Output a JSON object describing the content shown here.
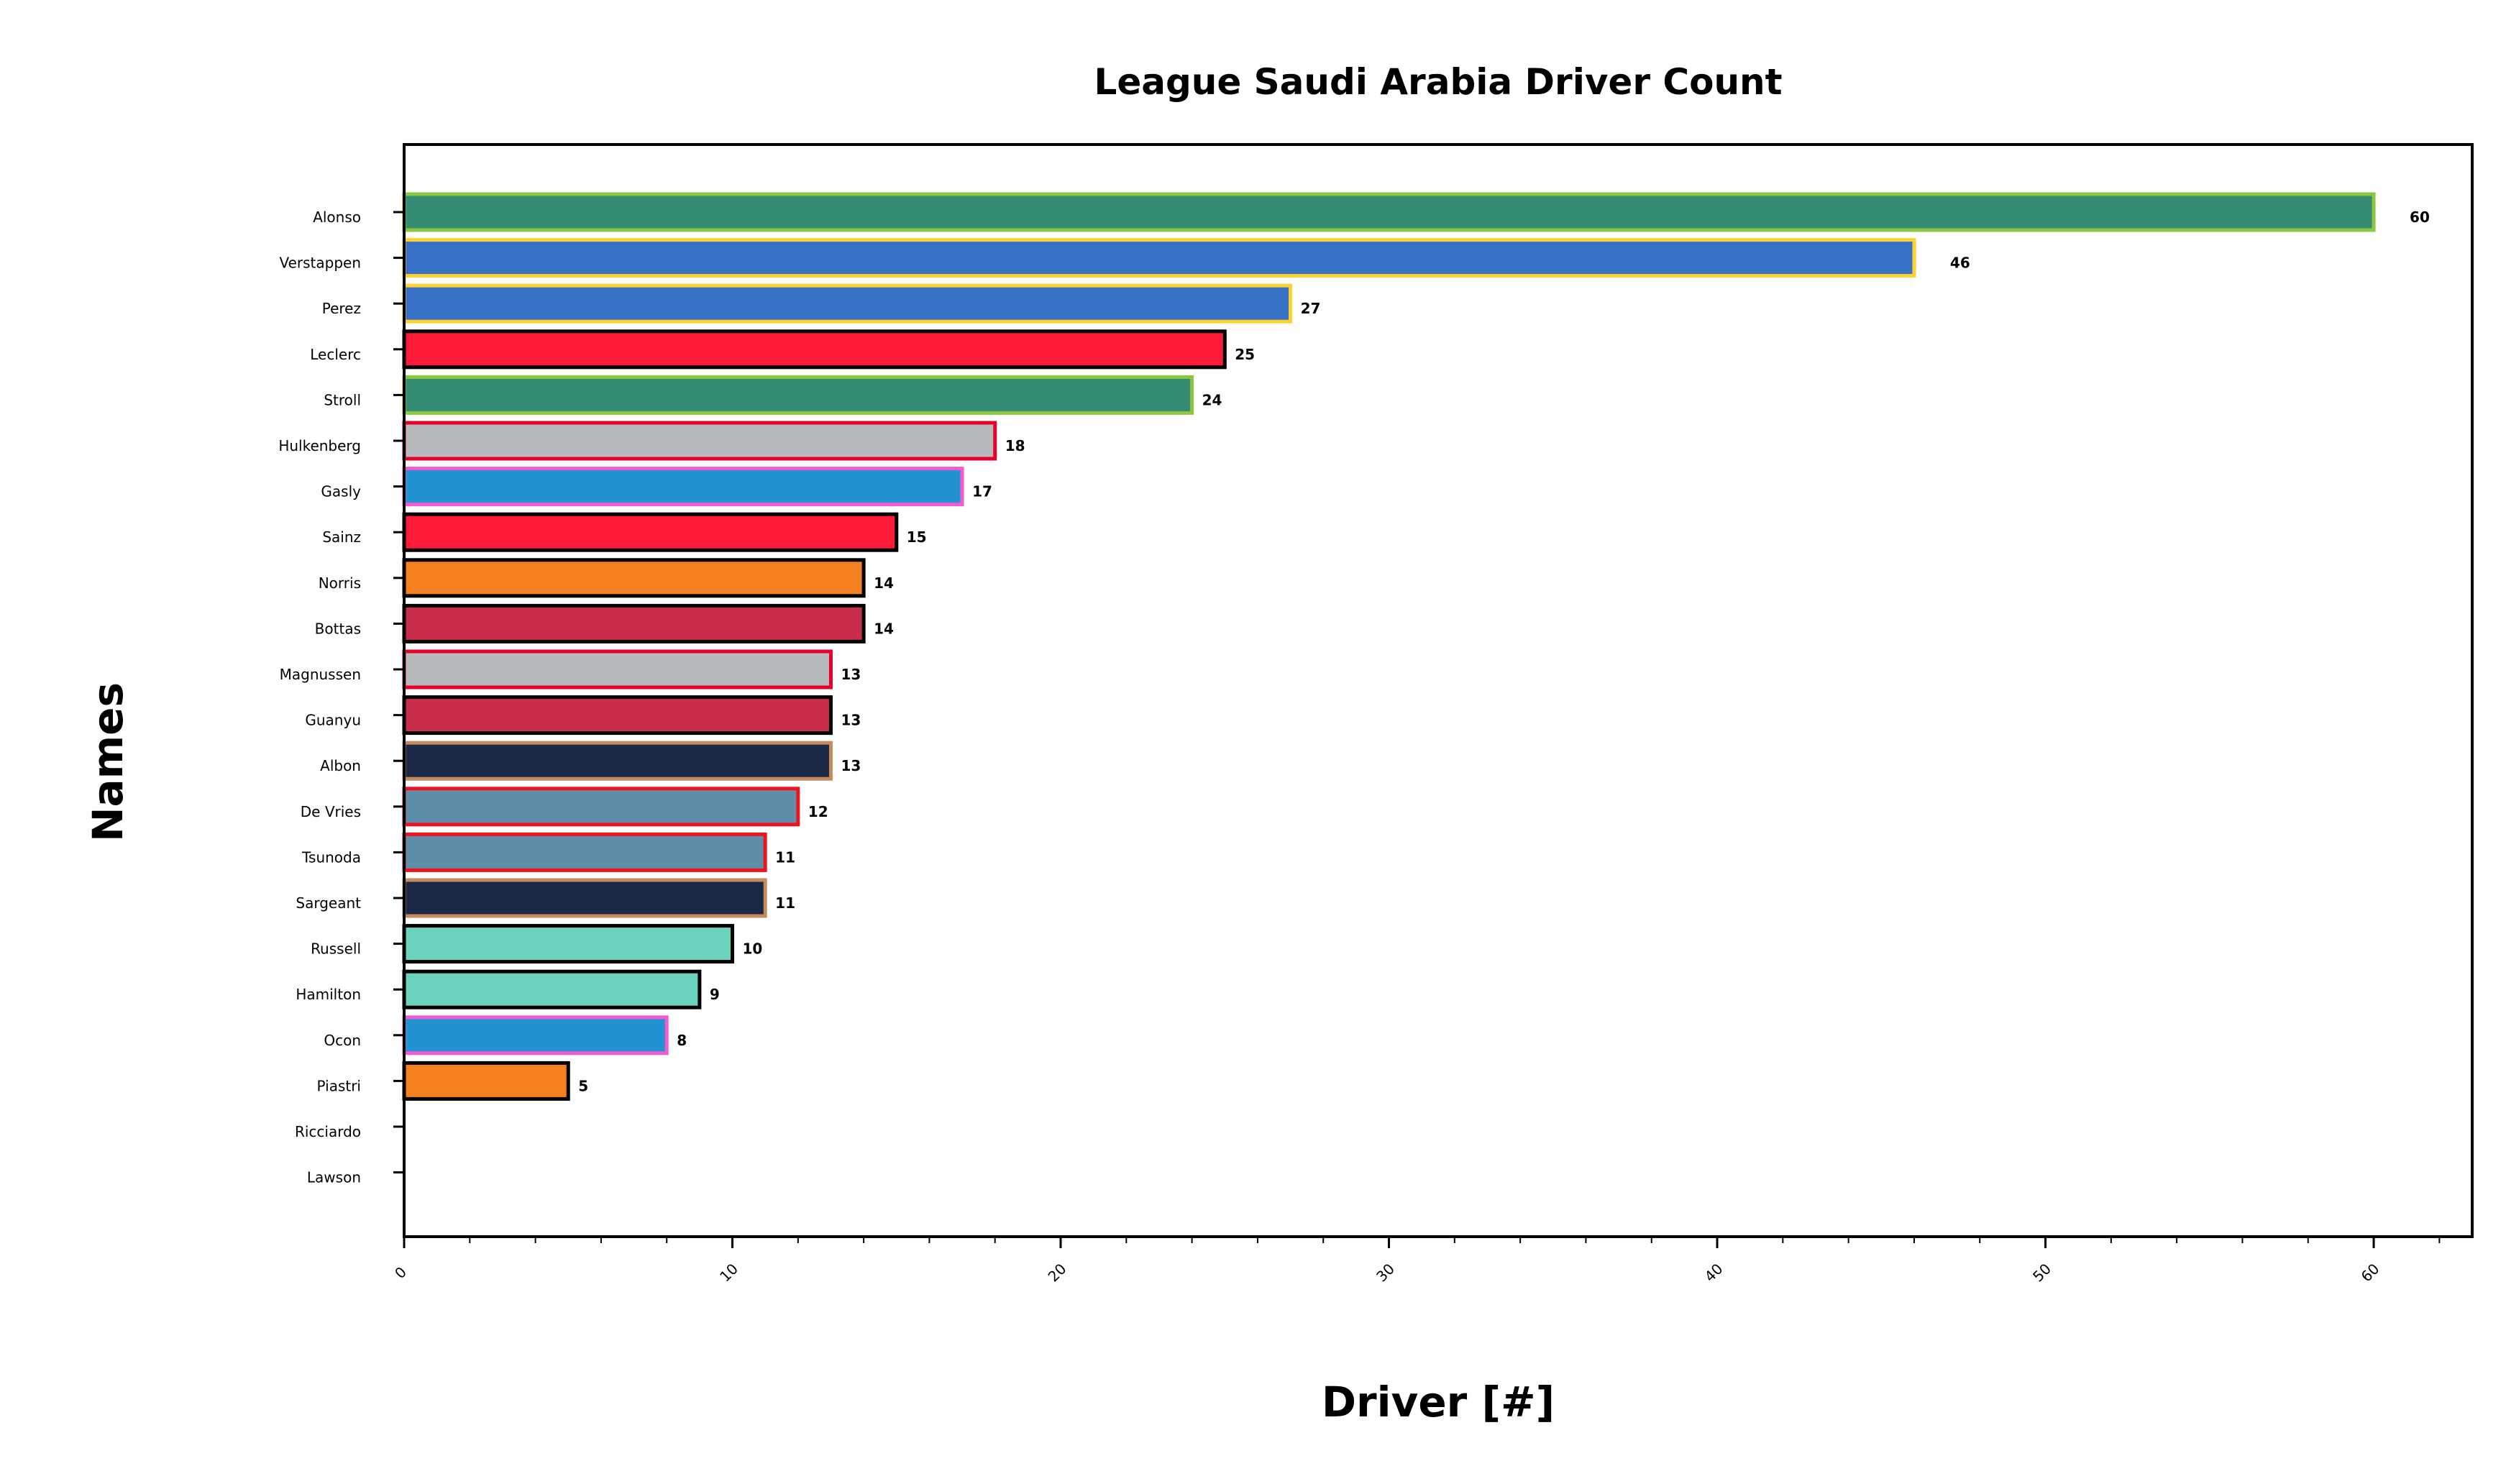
{
  "chart_data": {
    "type": "bar",
    "orientation": "horizontal",
    "title": "League Saudi Arabia Driver Count",
    "xlabel": "Driver [#]",
    "ylabel": "Names",
    "xlim": [
      0,
      63
    ],
    "xticks": [
      "0",
      "10",
      "20",
      "30",
      "40",
      "50",
      "60"
    ],
    "grid": false,
    "legend": "none",
    "bars": [
      {
        "name": "Alonso",
        "value": 60,
        "label": "60",
        "fill": "#358c74",
        "edge": "#8dc63f"
      },
      {
        "name": "Verstappen",
        "value": 46,
        "label": "46",
        "fill": "#3671c6",
        "edge": "#ffd12e"
      },
      {
        "name": "Perez",
        "value": 27,
        "label": "27",
        "fill": "#3671c6",
        "edge": "#ffd12e"
      },
      {
        "name": "Leclerc",
        "value": 25,
        "label": "25",
        "fill": "#ff1a39",
        "edge": "#000000"
      },
      {
        "name": "Stroll",
        "value": 24,
        "label": "24",
        "fill": "#358c74",
        "edge": "#8dc63f"
      },
      {
        "name": "Hulkenberg",
        "value": 18,
        "label": "18",
        "fill": "#b6babd",
        "edge": "#e6002b"
      },
      {
        "name": "Gasly",
        "value": 17,
        "label": "17",
        "fill": "#2293d1",
        "edge": "#f45bd2"
      },
      {
        "name": "Sainz",
        "value": 15,
        "label": "15",
        "fill": "#ff1a39",
        "edge": "#000000"
      },
      {
        "name": "Norris",
        "value": 14,
        "label": "14",
        "fill": "#f58020",
        "edge": "#000000"
      },
      {
        "name": "Bottas",
        "value": 14,
        "label": "14",
        "fill": "#c92d4b",
        "edge": "#000000"
      },
      {
        "name": "Magnussen",
        "value": 13,
        "label": "13",
        "fill": "#b6babd",
        "edge": "#e6002b"
      },
      {
        "name": "Guanyu",
        "value": 13,
        "label": "13",
        "fill": "#c92d4b",
        "edge": "#000000"
      },
      {
        "name": "Albon",
        "value": 13,
        "label": "13",
        "fill": "#1b2846",
        "edge": "#c68a5f"
      },
      {
        "name": "De Vries",
        "value": 12,
        "label": "12",
        "fill": "#5e8faa",
        "edge": "#f0121e"
      },
      {
        "name": "Tsunoda",
        "value": 11,
        "label": "11",
        "fill": "#5e8faa",
        "edge": "#f0121e"
      },
      {
        "name": "Sargeant",
        "value": 11,
        "label": "11",
        "fill": "#1b2846",
        "edge": "#c68a5f"
      },
      {
        "name": "Russell",
        "value": 10,
        "label": "10",
        "fill": "#6cd3bf",
        "edge": "#000000"
      },
      {
        "name": "Hamilton",
        "value": 9,
        "label": "9",
        "fill": "#6cd3bf",
        "edge": "#000000"
      },
      {
        "name": "Ocon",
        "value": 8,
        "label": "8",
        "fill": "#2293d1",
        "edge": "#f45bd2"
      },
      {
        "name": "Piastri",
        "value": 5,
        "label": "5",
        "fill": "#f58020",
        "edge": "#000000"
      },
      {
        "name": "Ricciardo",
        "value": 0,
        "label": "",
        "fill": "#5e8faa",
        "edge": "#f0121e"
      },
      {
        "name": "Lawson",
        "value": 0,
        "label": "",
        "fill": "#5e8faa",
        "edge": "#f0121e"
      }
    ]
  }
}
